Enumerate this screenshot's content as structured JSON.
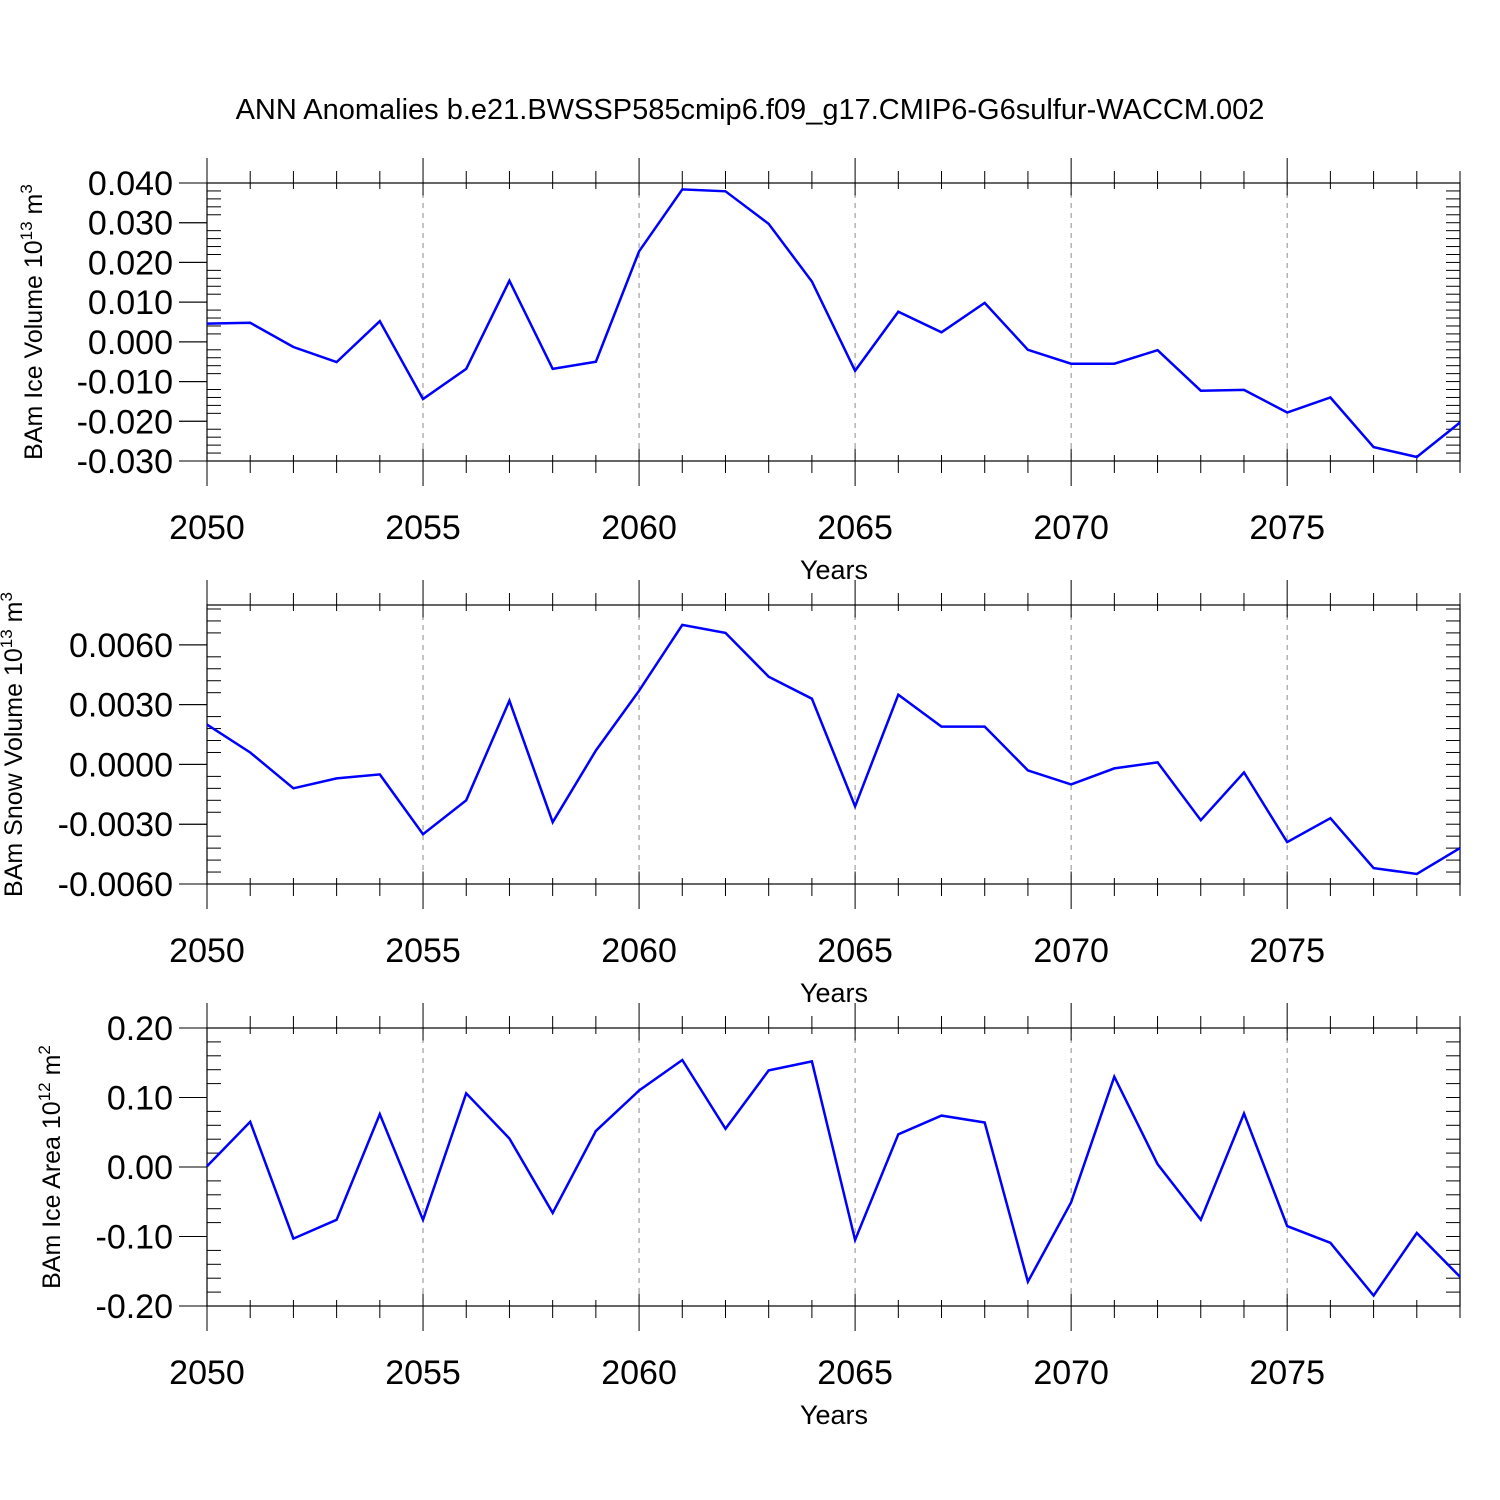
{
  "figure": {
    "title": "ANN Anomalies b.e21.BWSSP585cmip6.f09_g17.CMIP6-G6sulfur-WACCM.002"
  },
  "colors": {
    "line": "#0000ff",
    "axes": "#000000",
    "grid": "#8c8c8c"
  },
  "chart_data": [
    {
      "type": "line",
      "title": "",
      "xlabel": "Years",
      "ylabel": "BAm Ice Volume 10",
      "ylabel_exponent": "13",
      "ylabel_unit": "m",
      "ylabel_unit_exponent": "3",
      "xlim": [
        2050,
        2079
      ],
      "ylim": [
        -0.03,
        0.04
      ],
      "yticks": [
        -0.03,
        -0.02,
        -0.01,
        0.0,
        0.01,
        0.02,
        0.03,
        0.04
      ],
      "ytick_labels": [
        "-0.030",
        "-0.020",
        "-0.010",
        "0.000",
        "0.010",
        "0.020",
        "0.030",
        "0.040"
      ],
      "xticks": [
        2050,
        2055,
        2060,
        2065,
        2070,
        2075
      ],
      "xtick_labels": [
        "2050",
        "2055",
        "2060",
        "2065",
        "2070",
        "2075"
      ],
      "grid": "vertical dashed at major x ticks",
      "series": [
        {
          "x": [
            2050,
            2051,
            2052,
            2053,
            2054,
            2055,
            2056,
            2057,
            2058,
            2059,
            2060,
            2061,
            2062,
            2063,
            2064,
            2065,
            2066,
            2067,
            2068,
            2069,
            2070,
            2071,
            2072,
            2073,
            2074,
            2075,
            2076,
            2077,
            2078,
            2079
          ],
          "values": [
            0.0046,
            0.0048,
            -0.0013,
            -0.0051,
            0.0052,
            -0.0144,
            -0.0068,
            0.0154,
            -0.0068,
            -0.005,
            0.0228,
            0.0384,
            0.0379,
            0.0297,
            0.0152,
            -0.0073,
            0.0076,
            0.0024,
            0.0098,
            -0.002,
            -0.0055,
            -0.0055,
            -0.0021,
            -0.0123,
            -0.0121,
            -0.0178,
            -0.014,
            -0.0265,
            -0.029,
            -0.0203
          ]
        }
      ]
    },
    {
      "type": "line",
      "title": "",
      "xlabel": "Years",
      "ylabel": "BAm Snow Volume 10",
      "ylabel_exponent": "13",
      "ylabel_unit": "m",
      "ylabel_unit_exponent": "3",
      "xlim": [
        2050,
        2079
      ],
      "ylim": [
        -0.006,
        0.008
      ],
      "yticks": [
        -0.006,
        -0.003,
        0.0,
        0.003,
        0.006
      ],
      "ytick_labels": [
        "-0.0060",
        "-0.0030",
        "0.0000",
        "0.0030",
        "0.0060"
      ],
      "xticks": [
        2050,
        2055,
        2060,
        2065,
        2070,
        2075
      ],
      "xtick_labels": [
        "2050",
        "2055",
        "2060",
        "2065",
        "2070",
        "2075"
      ],
      "grid": "vertical dashed at major x ticks",
      "series": [
        {
          "x": [
            2050,
            2051,
            2052,
            2053,
            2054,
            2055,
            2056,
            2057,
            2058,
            2059,
            2060,
            2061,
            2062,
            2063,
            2064,
            2065,
            2066,
            2067,
            2068,
            2069,
            2070,
            2071,
            2072,
            2073,
            2074,
            2075,
            2076,
            2077,
            2078,
            2079
          ],
          "values": [
            0.002,
            0.0006,
            -0.0012,
            -0.0007,
            -0.0005,
            -0.0035,
            -0.0018,
            0.0032,
            -0.0029,
            0.0007,
            0.0037,
            0.007,
            0.0066,
            0.0044,
            0.0033,
            -0.0021,
            0.0035,
            0.0019,
            0.0019,
            -0.0003,
            -0.001,
            -0.0002,
            0.0001,
            -0.0028,
            -0.0004,
            -0.0039,
            -0.0027,
            -0.0052,
            -0.0055,
            -0.0042
          ]
        }
      ]
    },
    {
      "type": "line",
      "title": "",
      "xlabel": "Years",
      "ylabel": "BAm Ice Area 10",
      "ylabel_exponent": "12",
      "ylabel_unit": "m",
      "ylabel_unit_exponent": "2",
      "xlim": [
        2050,
        2079
      ],
      "ylim": [
        -0.2,
        0.2
      ],
      "yticks": [
        -0.2,
        -0.1,
        0.0,
        0.1,
        0.2
      ],
      "ytick_labels": [
        "-0.20",
        "-0.10",
        "0.00",
        "0.10",
        "0.20"
      ],
      "xticks": [
        2050,
        2055,
        2060,
        2065,
        2070,
        2075
      ],
      "xtick_labels": [
        "2050",
        "2055",
        "2060",
        "2065",
        "2070",
        "2075"
      ],
      "grid": "vertical dashed at major x ticks",
      "series": [
        {
          "x": [
            2050,
            2051,
            2052,
            2053,
            2054,
            2055,
            2056,
            2057,
            2058,
            2059,
            2060,
            2061,
            2062,
            2063,
            2064,
            2065,
            2066,
            2067,
            2068,
            2069,
            2070,
            2071,
            2072,
            2073,
            2074,
            2075,
            2076,
            2077,
            2078,
            2079
          ],
          "values": [
            0.001,
            0.065,
            -0.103,
            -0.076,
            0.076,
            -0.076,
            0.106,
            0.041,
            -0.066,
            0.052,
            0.11,
            0.154,
            0.055,
            0.139,
            0.152,
            -0.105,
            0.047,
            0.074,
            0.064,
            -0.165,
            -0.051,
            0.13,
            0.004,
            -0.076,
            0.077,
            -0.085,
            -0.109,
            -0.185,
            -0.095,
            -0.158
          ]
        }
      ]
    }
  ]
}
